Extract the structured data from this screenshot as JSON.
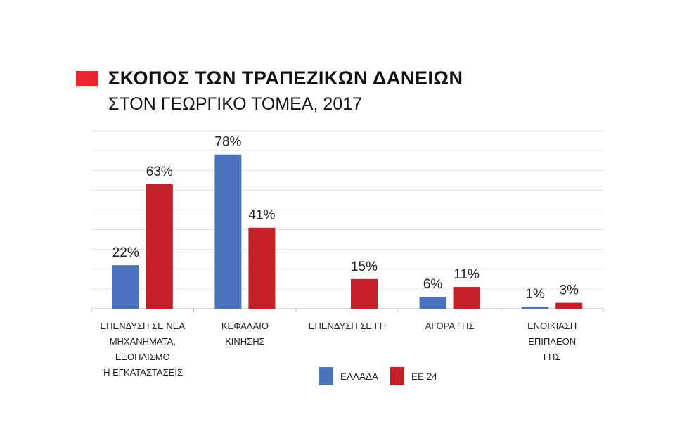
{
  "title": "ΣΚΟΠΟΣ ΤΩΝ ΤΡΑΠΕΖΙΚΩΝ ΔΑΝΕΙΩΝ",
  "subtitle": "ΣΤΟΝ ΓΕΩΡΓΙΚΟ ΤΟΜΕΑ, 2017",
  "colors": {
    "title_marker": "#e8282e",
    "greece": "#4a72bd",
    "eu24": "#c52028",
    "grid": "#e3e3e3",
    "axis": "#b5b5b5"
  },
  "chart_data": {
    "type": "bar",
    "title": "ΣΚΟΠΟΣ ΤΩΝ ΤΡΑΠΕΖΙΚΩΝ ΔΑΝΕΙΩΝ",
    "subtitle": "ΣΤΟΝ ΓΕΩΡΓΙΚΟ ΤΟΜΕΑ, 2017",
    "categories": [
      [
        "ΕΠΕΝΔΥΣΗ ΣΕ ΝΕΑ",
        "ΜΗΧΑΝΗΜΑΤΑ,",
        "ΕΞΟΠΛΙΣΜΟ",
        "Ή ΕΓΚΑΤΑΣΤΑΣΕΙΣ"
      ],
      [
        "ΚΕΦΑΛΑΙΟ",
        "ΚΙΝΗΣΗΣ"
      ],
      [
        "ΕΠΕΝΔΥΣΗ ΣΕ ΓΗ"
      ],
      [
        "ΑΓΟΡΑ ΓΗΣ"
      ],
      [
        "ΕΝΟΙΚΙΑΣΗ",
        "ΕΠΙΠΛΕΟΝ",
        "ΓΗΣ"
      ]
    ],
    "series": [
      {
        "name": "ΕΛΛΑΔΑ",
        "color": "#4a72bd",
        "values": [
          22,
          78,
          null,
          6,
          1
        ],
        "labels": [
          "22%",
          "78%",
          "",
          "6%",
          "1%"
        ]
      },
      {
        "name": "ΕΕ 24",
        "color": "#c52028",
        "values": [
          63,
          41,
          15,
          11,
          3
        ],
        "labels": [
          "63%",
          "41%",
          "15%",
          "11%",
          "3%"
        ]
      }
    ],
    "ylim": [
      0,
      90
    ],
    "grid": true,
    "legend": "bottom"
  }
}
